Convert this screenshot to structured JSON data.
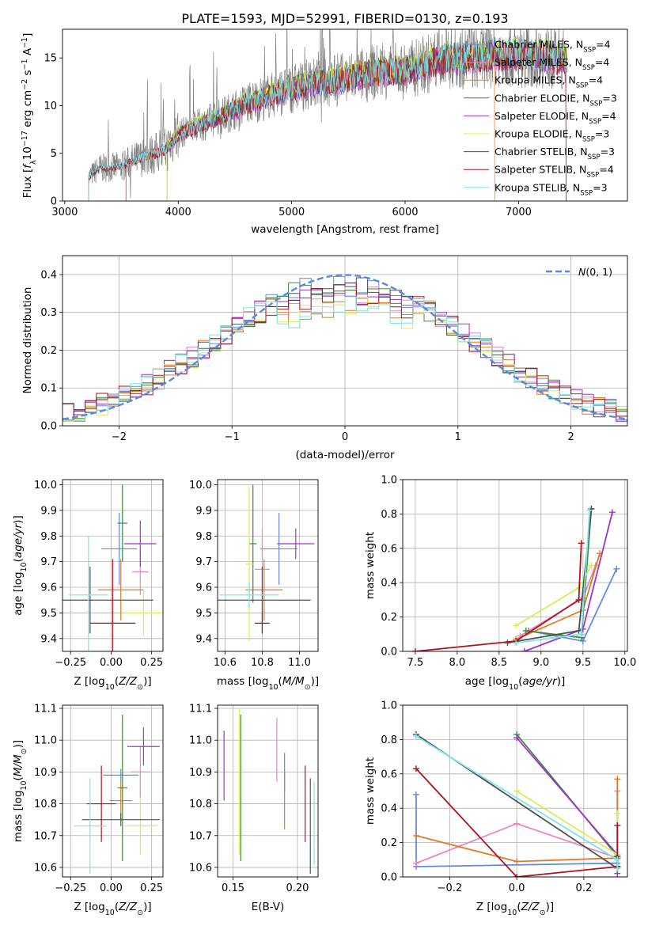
{
  "figure": {
    "suptitle": "PLATE=1593, MJD=52991, FIBERID=0130, z=0.193"
  },
  "colors": {
    "Chabrier MILES": "#6488e8",
    "Salpeter MILES": "#e887c0",
    "Kroupa MILES": "#e07a26",
    "Chabrier ELODIE": "#3d8a3d",
    "Salpeter ELODIE": "#a232c8",
    "Kroupa ELODIE": "#d9ec5a",
    "Chabrier STELIB": "#505050",
    "Salpeter STELIB": "#b0121e",
    "Kroupa STELIB": "#7de6e8",
    "data": "#808080",
    "gauss": "#5b8ad6"
  },
  "chart_data": [
    {
      "id": "spectrum",
      "type": "line",
      "xlabel": "wavelength [Angstrom, rest frame]",
      "ylabel": "Flux [f_λ 10^{-17} erg cm^{-2} s^{-1} A^{-1}]",
      "xlim": [
        2980,
        7960
      ],
      "ylim": [
        0,
        18
      ],
      "xticks": [
        3000,
        4000,
        5000,
        6000,
        7000
      ],
      "yticks": [
        0,
        5,
        10,
        15
      ],
      "legend_position": "right",
      "legend": [
        {
          "name": "Chabrier MILES",
          "nssp": "4"
        },
        {
          "name": "Salpeter MILES",
          "nssp": "4"
        },
        {
          "name": "Kroupa MILES",
          "nssp": "4"
        },
        {
          "name": "Chabrier ELODIE",
          "nssp": "3"
        },
        {
          "name": "Salpeter ELODIE",
          "nssp": "4"
        },
        {
          "name": "Kroupa ELODIE",
          "nssp": "3"
        },
        {
          "name": "Chabrier STELIB",
          "nssp": "3"
        },
        {
          "name": "Salpeter STELIB",
          "nssp": "4"
        },
        {
          "name": "Kroupa STELIB",
          "nssp": "3"
        }
      ],
      "continuum": {
        "x": [
          3210,
          3300,
          3400,
          3500,
          3600,
          3700,
          3800,
          3900,
          4000,
          4200,
          4400,
          4600,
          4800,
          5000,
          5200,
          5400,
          5600,
          5800,
          6000,
          6200,
          6400,
          6600,
          6800,
          7000,
          7200,
          7400
        ],
        "y": [
          2.5,
          3.4,
          3.5,
          3.6,
          4.2,
          4.6,
          5.0,
          5.4,
          7.0,
          8.0,
          9.0,
          10.2,
          11.0,
          11.8,
          12.3,
          12.6,
          13.2,
          13.6,
          13.6,
          14.4,
          15.0,
          15.0,
          15.3,
          15.3,
          15.2,
          14.8
        ]
      },
      "model_starts": {
        "MILES": 3540,
        "ELODIE": 3900,
        "STELIB": 3210
      },
      "model_ends": {
        "Kroupa MILES": 6790,
        "Salpeter STELIB": 7420,
        "Salpeter MILES": 7420
      }
    },
    {
      "id": "residuals",
      "type": "line",
      "xlabel": "(data-model)/error",
      "ylabel": "Normed distribution",
      "xlim": [
        -2.5,
        2.5
      ],
      "ylim": [
        0,
        0.45
      ],
      "xticks": [
        -2,
        -1,
        0,
        1,
        2
      ],
      "yticks": [
        0.0,
        0.1,
        0.2,
        0.3,
        0.4
      ],
      "gauss_label": "N(0, 1)",
      "legend_position": "top-right"
    },
    {
      "id": "age_vs_Z",
      "type": "scatter",
      "xlabel": "Z [log10(Z/Z⊙)]",
      "ylabel": "age  [log10(age/yr)]",
      "xlim": [
        -0.3,
        0.32
      ],
      "ylim": [
        9.35,
        10.02
      ],
      "xticks": [
        -0.25,
        0.0,
        0.25
      ],
      "yticks": [
        9.4,
        9.5,
        9.6,
        9.7,
        9.8,
        9.9,
        10.0
      ],
      "points": [
        {
          "model": "Chabrier MILES",
          "x": 0.05,
          "y": 9.75,
          "xerr": 0.11,
          "yerr": 0.14
        },
        {
          "model": "Salpeter MILES",
          "x": 0.18,
          "y": 9.66,
          "xerr": 0.05,
          "yerr": 0.09
        },
        {
          "model": "Kroupa MILES",
          "x": 0.06,
          "y": 9.59,
          "xerr": 0.14,
          "yerr": 0.12
        },
        {
          "model": "Chabrier ELODIE",
          "x": 0.07,
          "y": 9.85,
          "xerr": 0.03,
          "yerr": 0.15
        },
        {
          "model": "Salpeter ELODIE",
          "x": 0.18,
          "y": 9.77,
          "xerr": 0.1,
          "yerr": 0.09
        },
        {
          "model": "Kroupa ELODIE",
          "x": 0.2,
          "y": 9.5,
          "xerr": 0.12,
          "yerr": 0.09
        },
        {
          "model": "Chabrier STELIB",
          "x": -0.13,
          "y": 9.55,
          "xerr": 0.39,
          "yerr": 0.13
        },
        {
          "model": "Salpeter STELIB",
          "x": 0.01,
          "y": 9.46,
          "xerr": 0.14,
          "yerr": 0.25
        },
        {
          "model": "Kroupa STELIB",
          "x": -0.14,
          "y": 9.57,
          "xerr": 0.12,
          "yerr": 0.23
        }
      ]
    },
    {
      "id": "age_vs_mass",
      "type": "scatter",
      "xlabel": "mass [log10(M/M⊙)]",
      "ylabel": "",
      "xlim": [
        10.56,
        11.1
      ],
      "ylim": [
        9.35,
        10.02
      ],
      "xticks": [
        10.6,
        10.8,
        11.0
      ],
      "yticks": [
        9.4,
        9.5,
        9.6,
        9.7,
        9.8,
        9.9,
        10.0
      ],
      "points": [
        {
          "model": "Chabrier MILES",
          "x": 10.89,
          "y": 9.75,
          "xerr": 0.1,
          "yerr": 0.14
        },
        {
          "model": "Salpeter MILES",
          "x": 10.8,
          "y": 9.67,
          "xerr": 0.04,
          "yerr": 0.16
        },
        {
          "model": "Kroupa MILES",
          "x": 10.81,
          "y": 9.59,
          "xerr": 0.1,
          "yerr": 0.12
        },
        {
          "model": "Chabrier ELODIE",
          "x": 10.75,
          "y": 9.77,
          "xerr": 0.02,
          "yerr": 0.23
        },
        {
          "model": "Salpeter ELODIE",
          "x": 10.98,
          "y": 9.77,
          "xerr": 0.1,
          "yerr": 0.06
        },
        {
          "model": "Kroupa ELODIE",
          "x": 10.73,
          "y": 9.69,
          "xerr": 0.02,
          "yerr": 0.3
        },
        {
          "model": "Chabrier STELIB",
          "x": 10.8,
          "y": 9.55,
          "xerr": 0.26,
          "yerr": 0.13
        },
        {
          "model": "Salpeter STELIB",
          "x": 10.8,
          "y": 9.46,
          "xerr": 0.04,
          "yerr": 0.04
        },
        {
          "model": "Kroupa STELIB",
          "x": 10.73,
          "y": 9.57,
          "xerr": 0.16,
          "yerr": 0.05
        }
      ]
    },
    {
      "id": "weight_vs_age",
      "type": "line",
      "xlabel": "age  [log10(age/yr)]",
      "ylabel": "mass weight",
      "xlim": [
        7.35,
        10.03
      ],
      "ylim": [
        0,
        1
      ],
      "xticks": [
        7.5,
        8.0,
        8.5,
        9.0,
        9.5,
        10.0
      ],
      "yticks": [
        0.0,
        0.2,
        0.4,
        0.6,
        0.8,
        1.0
      ],
      "series": [
        {
          "model": "Chabrier MILES",
          "x": [
            8.85,
            9.5,
            9.9
          ],
          "y": [
            0.12,
            0.06,
            0.48
          ]
        },
        {
          "model": "Salpeter MILES",
          "x": [
            8.75,
            9.5,
            9.65
          ],
          "y": [
            0.09,
            0.31,
            0.5
          ]
        },
        {
          "model": "Kroupa MILES",
          "x": [
            8.7,
            9.5,
            9.7
          ],
          "y": [
            0.07,
            0.24,
            0.57
          ]
        },
        {
          "model": "Chabrier ELODIE",
          "x": [
            8.82,
            9.48,
            9.6
          ],
          "y": [
            0.12,
            0.08,
            0.83
          ]
        },
        {
          "model": "Salpeter ELODIE",
          "x": [
            8.8,
            9.5,
            9.85
          ],
          "y": [
            0.0,
            0.13,
            0.81
          ]
        },
        {
          "model": "Kroupa ELODIE",
          "x": [
            8.7,
            9.45,
            9.6
          ],
          "y": [
            0.15,
            0.37,
            0.5
          ]
        },
        {
          "model": "Chabrier STELIB",
          "x": [
            8.6,
            9.45,
            9.6
          ],
          "y": [
            0.05,
            0.12,
            0.83
          ]
        },
        {
          "model": "Salpeter STELIB",
          "x": [
            7.5,
            8.7,
            9.45,
            9.48
          ],
          "y": [
            0.0,
            0.06,
            0.3,
            0.63
          ]
        },
        {
          "model": "Kroupa STELIB",
          "x": [
            8.7,
            9.48,
            9.58
          ],
          "y": [
            0.05,
            0.1,
            0.82
          ]
        }
      ]
    },
    {
      "id": "mass_vs_Z",
      "type": "scatter",
      "xlabel": "Z [log10(Z/Z⊙)]",
      "ylabel": "mass [log10(M/M⊙)]",
      "xlim": [
        -0.3,
        0.32
      ],
      "ylim": [
        10.57,
        11.11
      ],
      "xticks": [
        -0.25,
        0.0,
        0.25
      ],
      "yticks": [
        10.6,
        10.7,
        10.8,
        10.9,
        11.0,
        11.1
      ],
      "points": [
        {
          "model": "Chabrier MILES",
          "x": 0.06,
          "y": 10.89,
          "xerr": 0.11,
          "yerr": 0.02
        },
        {
          "model": "Salpeter MILES",
          "x": 0.18,
          "y": 10.9,
          "xerr": 0.06,
          "yerr": 0.08
        },
        {
          "model": "Kroupa MILES",
          "x": 0.06,
          "y": 10.81,
          "xerr": 0.07,
          "yerr": 0.06
        },
        {
          "model": "Chabrier ELODIE",
          "x": 0.07,
          "y": 10.85,
          "xerr": 0.03,
          "yerr": 0.23
        },
        {
          "model": "Salpeter ELODIE",
          "x": 0.2,
          "y": 10.98,
          "xerr": 0.1,
          "yerr": 0.06
        },
        {
          "model": "Kroupa ELODIE",
          "x": 0.18,
          "y": 10.73,
          "xerr": 0.1,
          "yerr": 0.09
        },
        {
          "model": "Chabrier STELIB",
          "x": 0.06,
          "y": 10.75,
          "xerr": 0.24,
          "yerr": 0.02
        },
        {
          "model": "Salpeter STELIB",
          "x": -0.06,
          "y": 10.8,
          "xerr": 0.09,
          "yerr": 0.12
        },
        {
          "model": "Kroupa STELIB",
          "x": -0.13,
          "y": 10.73,
          "xerr": 0.1,
          "yerr": 0.15
        }
      ]
    },
    {
      "id": "mass_vs_ebv",
      "type": "scatter",
      "xlabel": "E(B-V)",
      "ylabel": "",
      "xlim": [
        0.138,
        0.216
      ],
      "ylim": [
        10.57,
        11.11
      ],
      "xticks": [
        0.15,
        0.2
      ],
      "yticks": [
        10.6,
        10.7,
        10.8,
        10.9,
        11.0,
        11.1
      ],
      "points": [
        {
          "model": "Chabrier MILES",
          "x": 0.19,
          "y": 10.9,
          "yerr": 0.06
        },
        {
          "model": "Salpeter MILES",
          "x": 0.184,
          "y": 10.97,
          "yerr": 0.1
        },
        {
          "model": "Kroupa MILES",
          "x": 0.19,
          "y": 10.81,
          "yerr": 0.09
        },
        {
          "model": "Chabrier ELODIE",
          "x": 0.156,
          "y": 10.85,
          "yerr": 0.23
        },
        {
          "model": "Salpeter ELODIE",
          "x": 0.143,
          "y": 10.92,
          "yerr": 0.11
        },
        {
          "model": "Kroupa ELODIE",
          "x": 0.155,
          "y": 10.87,
          "yerr": 0.23
        },
        {
          "model": "Chabrier STELIB",
          "x": 0.21,
          "y": 10.73,
          "yerr": 0.15
        },
        {
          "model": "Salpeter STELIB",
          "x": 0.206,
          "y": 10.8,
          "yerr": 0.12
        },
        {
          "model": "Kroupa STELIB",
          "x": 0.213,
          "y": 10.74,
          "yerr": 0.13
        }
      ]
    },
    {
      "id": "weight_vs_Z",
      "type": "line",
      "xlabel": "Z [log10(Z/Z⊙)]",
      "ylabel": "mass weight",
      "xlim": [
        -0.34,
        0.33
      ],
      "ylim": [
        0,
        1
      ],
      "xticks": [
        -0.2,
        0.0,
        0.2
      ],
      "yticks": [
        0.0,
        0.2,
        0.4,
        0.6,
        0.8,
        1.0
      ],
      "series": [
        {
          "model": "Chabrier MILES",
          "x": [
            -0.3,
            -0.3,
            0.3,
            0.3
          ],
          "y": [
            0.48,
            0.06,
            0.08,
            0.06
          ]
        },
        {
          "model": "Salpeter MILES",
          "x": [
            -0.3,
            0.0,
            0.3,
            0.3
          ],
          "y": [
            0.08,
            0.31,
            0.11,
            0.5
          ]
        },
        {
          "model": "Kroupa MILES",
          "x": [
            -0.3,
            0.0,
            0.3,
            0.3
          ],
          "y": [
            0.24,
            0.09,
            0.11,
            0.57
          ]
        },
        {
          "model": "Chabrier ELODIE",
          "x": [
            0.0,
            0.3,
            0.3
          ],
          "y": [
            0.83,
            0.12,
            0.06
          ]
        },
        {
          "model": "Salpeter ELODIE",
          "x": [
            0.0,
            0.3,
            0.3
          ],
          "y": [
            0.81,
            0.13,
            0.02
          ]
        },
        {
          "model": "Kroupa ELODIE",
          "x": [
            0.0,
            0.3,
            0.3
          ],
          "y": [
            0.5,
            0.13,
            0.37
          ]
        },
        {
          "model": "Chabrier STELIB",
          "x": [
            -0.3,
            0.3,
            0.3
          ],
          "y": [
            0.83,
            0.05,
            0.12
          ]
        },
        {
          "model": "Salpeter STELIB",
          "x": [
            -0.3,
            0.0,
            0.3,
            0.3
          ],
          "y": [
            0.63,
            0.0,
            0.06,
            0.3
          ]
        },
        {
          "model": "Kroupa STELIB",
          "x": [
            -0.3,
            0.3,
            0.3
          ],
          "y": [
            0.82,
            0.1,
            0.05
          ]
        }
      ]
    }
  ]
}
